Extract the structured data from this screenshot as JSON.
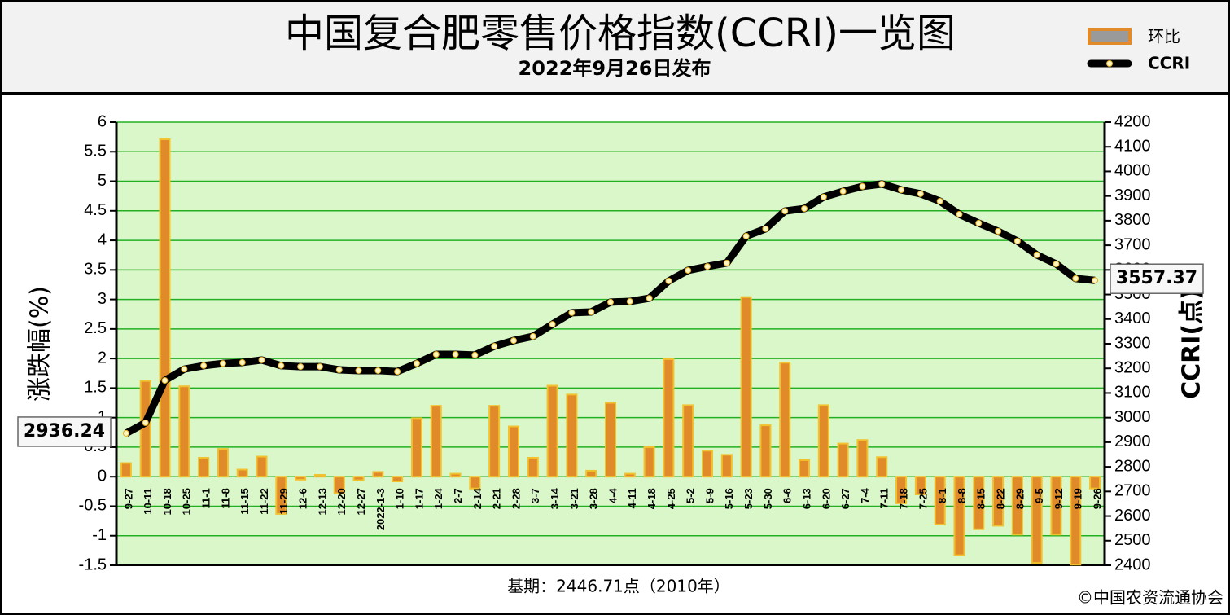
{
  "chart_data": {
    "type": "bar",
    "title": "中国复合肥零售价格指数(CCRI)一览图",
    "subtitle": "2022年9月26日发布",
    "y_label": "涨跌幅(%)",
    "y2_label": "CCRI(点)",
    "footnote": "基期：2446.71点（2010年）",
    "source": "©中国农资流通协会",
    "categories": [
      "9-27",
      "10-11",
      "10-18",
      "10-25",
      "11-1",
      "11-8",
      "11-15",
      "11-22",
      "11-29",
      "12-6",
      "12-13",
      "12-20",
      "12-27",
      "2022-1-3",
      "1-10",
      "1-17",
      "1-24",
      "2-7",
      "2-14",
      "2-21",
      "2-28",
      "3-7",
      "3-14",
      "3-21",
      "3-28",
      "4-4",
      "4-11",
      "4-18",
      "4-25",
      "5-2",
      "5-9",
      "5-16",
      "5-23",
      "5-30",
      "6-6",
      "6-13",
      "6-20",
      "6-27",
      "7-4",
      "7-11",
      "7-18",
      "7-25",
      "8-1",
      "8-8",
      "8-15",
      "8-22",
      "8-29",
      "9-5",
      "9-12",
      "9-19",
      "9-26"
    ],
    "series": [
      {
        "name": "环比",
        "type": "bar",
        "color": "#e08a2a",
        "values": [
          0.23,
          1.62,
          5.71,
          1.53,
          0.32,
          0.47,
          0.12,
          0.34,
          -0.63,
          -0.05,
          0.03,
          -0.28,
          -0.06,
          0.08,
          -0.08,
          0.99,
          1.2,
          0.05,
          -0.2,
          1.2,
          0.85,
          0.32,
          1.54,
          1.39,
          0.1,
          1.25,
          0.05,
          0.5,
          1.99,
          1.21,
          0.44,
          0.37,
          3.04,
          0.87,
          1.93,
          0.28,
          1.21,
          0.56,
          0.62,
          0.33,
          -0.45,
          -0.3,
          -0.81,
          -1.33,
          -0.89,
          -0.83,
          -0.98,
          -1.46,
          -0.98,
          -1.49,
          -0.2
        ]
      },
      {
        "name": "CCRI",
        "type": "line",
        "axis": "y2",
        "color": "#000000",
        "values": [
          2936.24,
          2979,
          3151,
          3197,
          3211,
          3220,
          3224,
          3234,
          3211,
          3207,
          3207,
          3194,
          3191,
          3191,
          3187,
          3220,
          3257,
          3257,
          3254,
          3290,
          3313,
          3330,
          3379,
          3426,
          3429,
          3469,
          3472,
          3485,
          3555,
          3598,
          3614,
          3628,
          3737,
          3767,
          3839,
          3849,
          3896,
          3919,
          3939,
          3949,
          3925,
          3909,
          3879,
          3826,
          3790,
          3757,
          3717,
          3661,
          3624,
          3565,
          3557.37
        ]
      }
    ],
    "ylim": [
      -1.5,
      6
    ],
    "yticks": [
      -1.5,
      -1,
      -0.5,
      0,
      0.5,
      1,
      1.5,
      2,
      2.5,
      3,
      3.5,
      4,
      4.5,
      5,
      5.5,
      6
    ],
    "y2lim": [
      2400,
      4200
    ],
    "y2ticks": [
      2400,
      2500,
      2600,
      2700,
      2800,
      2900,
      3000,
      3100,
      3200,
      3300,
      3400,
      3500,
      3600,
      3700,
      3800,
      3900,
      4000,
      4100,
      4200
    ],
    "grid": true
  }
}
